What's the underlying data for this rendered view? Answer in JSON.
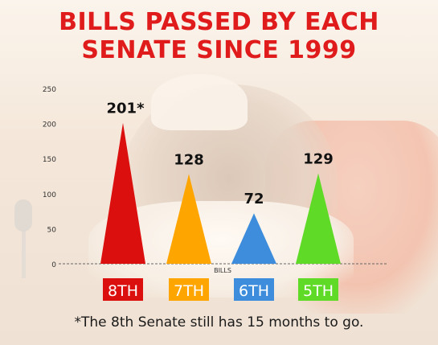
{
  "title_line1": "BILLS PASSED BY EACH",
  "title_line2": "SENATE SINCE 1999",
  "footnote": "*The 8th Senate still has 15 months to go.",
  "chart_data": {
    "type": "bar",
    "title": "BILLS PASSED BY EACH SENATE SINCE 1999",
    "xlabel": "BILLS",
    "ylabel": "",
    "ylim": [
      0,
      250
    ],
    "yticks": [
      0,
      50,
      100,
      150,
      200,
      250
    ],
    "grid": false,
    "categories": [
      "8TH",
      "7TH",
      "6TH",
      "5TH"
    ],
    "values": [
      201,
      128,
      72,
      129
    ],
    "value_labels": [
      "201*",
      "128",
      "72",
      "129"
    ],
    "colors": [
      "#dc0f0f",
      "#ffa500",
      "#3d8ddc",
      "#5fda26"
    ]
  }
}
